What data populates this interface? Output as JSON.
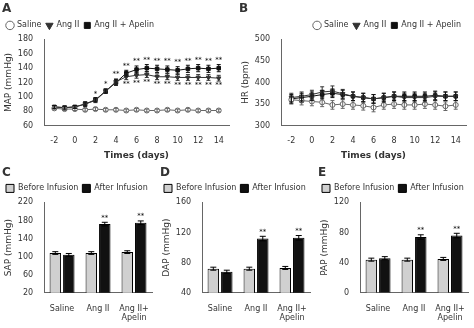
{
  "chart_data": [
    {
      "type": "line",
      "title": "A",
      "xlabel": "Times (days)",
      "ylabel": "MAP (mmHg)",
      "x": [
        -2,
        -1,
        0,
        1,
        2,
        3,
        4,
        5,
        6,
        7,
        8,
        9,
        10,
        11,
        12,
        13,
        14
      ],
      "xlim": [
        -3,
        15
      ],
      "xticks": [
        -2,
        0,
        2,
        4,
        6,
        8,
        10,
        12,
        14
      ],
      "ylim": [
        60,
        180
      ],
      "yticks": [
        60,
        80,
        100,
        120,
        140,
        160,
        180
      ],
      "grid": false,
      "legend": "upper left",
      "series": [
        {
          "name": "Saline",
          "color": "#666666",
          "marker": "hollow_circle",
          "values": [
            84,
            83,
            83,
            82,
            83,
            82,
            82,
            81,
            82,
            81,
            81,
            82,
            81,
            82,
            81,
            81,
            81
          ],
          "errors": [
            2,
            2,
            2,
            2,
            2,
            2,
            2,
            2,
            2,
            2,
            2,
            2,
            2,
            2,
            2,
            2,
            2
          ]
        },
        {
          "name": "Ang II",
          "color": "#333333",
          "marker": "triangle_down",
          "values": [
            86,
            85,
            86,
            90,
            95,
            108,
            121,
            128,
            130,
            131,
            128,
            128,
            127,
            127,
            127,
            127,
            126
          ],
          "errors": [
            2,
            2,
            2,
            3,
            3,
            3,
            4,
            4,
            4,
            4,
            4,
            4,
            4,
            4,
            4,
            4,
            4
          ]
        },
        {
          "name": "Ang II + Apelin",
          "color": "#111111",
          "marker": "square",
          "values": [
            86,
            85,
            86,
            90,
            96,
            108,
            120,
            133,
            138,
            140,
            139,
            138,
            137,
            139,
            140,
            139,
            140
          ],
          "errors": [
            2,
            2,
            2,
            3,
            3,
            3,
            4,
            4,
            5,
            5,
            5,
            5,
            5,
            5,
            5,
            5,
            5
          ]
        }
      ],
      "annotations": [
        {
          "text": "*",
          "x": 2,
          "series": "Ang II"
        },
        {
          "text": "*",
          "x": 3,
          "series": "Ang II"
        },
        {
          "text": "**",
          "x": 4,
          "series": "Ang II"
        },
        {
          "text": "**",
          "x": 5,
          "series": "Ang II"
        },
        {
          "text": "**",
          "x": 6,
          "series": "Ang II"
        },
        {
          "text": "**",
          "x": 7,
          "series": "Ang II"
        },
        {
          "text": "**",
          "x": 8,
          "series": "Ang II"
        },
        {
          "text": "**",
          "x": 9,
          "series": "Ang II"
        },
        {
          "text": "**",
          "x": 10,
          "series": "Ang II"
        },
        {
          "text": "**",
          "x": 11,
          "series": "Ang II"
        },
        {
          "text": "**",
          "x": 12,
          "series": "Ang II"
        },
        {
          "text": "**",
          "x": 13,
          "series": "Ang II"
        },
        {
          "text": "**",
          "x": 14,
          "series": "Ang II"
        },
        {
          "text": "**",
          "x": 5,
          "series": "Ang II + Apelin"
        },
        {
          "text": "**",
          "x": 6,
          "series": "Ang II + Apelin"
        },
        {
          "text": "**",
          "x": 7,
          "series": "Ang II + Apelin"
        },
        {
          "text": "**",
          "x": 8,
          "series": "Ang II + Apelin"
        },
        {
          "text": "**",
          "x": 9,
          "series": "Ang II + Apelin"
        },
        {
          "text": "**",
          "x": 10,
          "series": "Ang II + Apelin"
        },
        {
          "text": "**",
          "x": 11,
          "series": "Ang II + Apelin"
        },
        {
          "text": "**",
          "x": 12,
          "series": "Ang II + Apelin"
        },
        {
          "text": "**",
          "x": 13,
          "series": "Ang II + Apelin"
        },
        {
          "text": "**",
          "x": 14,
          "series": "Ang II + Apelin"
        }
      ]
    },
    {
      "type": "line",
      "title": "B",
      "xlabel": "Times (days)",
      "ylabel": "HR (bpm)",
      "x": [
        -2,
        -1,
        0,
        1,
        2,
        3,
        4,
        5,
        6,
        7,
        8,
        9,
        10,
        11,
        12,
        13,
        14
      ],
      "xlim": [
        -3,
        15
      ],
      "xticks": [
        -2,
        0,
        2,
        4,
        6,
        8,
        10,
        12,
        14
      ],
      "ylim": [
        300,
        500
      ],
      "yticks": [
        300,
        350,
        400,
        450,
        500
      ],
      "grid": false,
      "legend": "upper right",
      "series": [
        {
          "name": "Saline",
          "color": "#666666",
          "marker": "hollow_circle",
          "values": [
            360,
            358,
            356,
            354,
            348,
            350,
            348,
            346,
            342,
            348,
            350,
            348,
            348,
            350,
            348,
            345,
            348
          ],
          "errors": [
            10,
            10,
            10,
            10,
            10,
            10,
            10,
            10,
            10,
            10,
            10,
            10,
            10,
            10,
            10,
            10,
            10
          ]
        },
        {
          "name": "Ang II",
          "color": "#333333",
          "marker": "triangle_down",
          "values": [
            365,
            368,
            372,
            378,
            380,
            374,
            368,
            365,
            362,
            365,
            368,
            365,
            365,
            365,
            368,
            368,
            368
          ],
          "errors": [
            10,
            10,
            10,
            12,
            12,
            10,
            10,
            10,
            10,
            10,
            10,
            10,
            10,
            10,
            10,
            10,
            10
          ]
        },
        {
          "name": "Ang II + Apelin",
          "color": "#111111",
          "marker": "square",
          "values": [
            362,
            365,
            368,
            372,
            375,
            372,
            368,
            365,
            362,
            365,
            368,
            368,
            368,
            368,
            370,
            368,
            368
          ],
          "errors": [
            10,
            10,
            10,
            10,
            10,
            10,
            10,
            10,
            10,
            10,
            10,
            10,
            10,
            10,
            10,
            10,
            10
          ]
        }
      ]
    },
    {
      "type": "bar",
      "title": "C",
      "ylabel": "SAP (mmHg)",
      "categories": [
        "Saline",
        "Ang II",
        "Ang II+\nApelin"
      ],
      "ylim": [
        20,
        220
      ],
      "yticks": [
        20,
        60,
        100,
        140,
        180,
        220
      ],
      "grid": false,
      "legend": "upper left",
      "series": [
        {
          "name": "Before Infusion",
          "color": "#d0d0d0",
          "values": [
            108,
            108,
            110
          ],
          "errors": [
            3,
            3,
            3
          ]
        },
        {
          "name": "After Infusion",
          "color": "#111111",
          "values": [
            104,
            172,
            175
          ],
          "errors": [
            3,
            4,
            4
          ]
        }
      ],
      "annotations": [
        {
          "text": "**",
          "category": "Ang II",
          "series": "After Infusion"
        },
        {
          "text": "**",
          "category": "Ang II+\nApelin",
          "series": "After Infusion"
        }
      ]
    },
    {
      "type": "bar",
      "title": "D",
      "ylabel": "DAP (mmHg)",
      "categories": [
        "Saline",
        "Ang II",
        "Ang II+\nApelin"
      ],
      "ylim": [
        40,
        160
      ],
      "yticks": [
        40,
        80,
        120,
        160
      ],
      "grid": false,
      "legend": "upper left",
      "series": [
        {
          "name": "Before Infusion",
          "color": "#d0d0d0",
          "values": [
            72,
            72,
            73
          ],
          "errors": [
            2,
            2,
            2
          ]
        },
        {
          "name": "After Infusion",
          "color": "#111111",
          "values": [
            68,
            112,
            113
          ],
          "errors": [
            2,
            3,
            3
          ]
        }
      ],
      "annotations": [
        {
          "text": "**",
          "category": "Ang II",
          "series": "After Infusion"
        },
        {
          "text": "**",
          "category": "Ang II+\nApelin",
          "series": "After Infusion"
        }
      ]
    },
    {
      "type": "bar",
      "title": "E",
      "ylabel": "PAP (mmHg)",
      "categories": [
        "Saline",
        "Ang II",
        "Ang II+\nApelin"
      ],
      "ylim": [
        0,
        120
      ],
      "yticks": [
        0,
        40,
        80,
        120
      ],
      "grid": false,
      "legend": "upper left",
      "series": [
        {
          "name": "Before Infusion",
          "color": "#d0d0d0",
          "values": [
            44,
            44,
            45
          ],
          "errors": [
            2,
            2,
            2
          ]
        },
        {
          "name": "After Infusion",
          "color": "#111111",
          "values": [
            46,
            74,
            76
          ],
          "errors": [
            2,
            3,
            3
          ]
        }
      ],
      "annotations": [
        {
          "text": "**",
          "category": "Ang II",
          "series": "After Infusion"
        },
        {
          "text": "**",
          "category": "Ang II+\nApelin",
          "series": "After Infusion"
        }
      ]
    }
  ]
}
